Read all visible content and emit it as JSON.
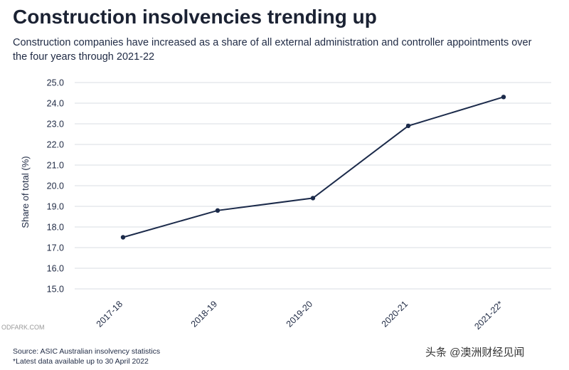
{
  "header": {
    "title": "Construction insolvencies trending up",
    "subtitle": "Construction companies have increased as a share of all external administration and controller appointments over the four years through 2021-22"
  },
  "chart_data": {
    "type": "line",
    "title": "Construction insolvencies trending up",
    "subtitle": "Construction companies have increased as a share of all external administration and controller appointments over the four years through 2021-22",
    "categories": [
      "2017-18",
      "2018-19",
      "2019-20",
      "2020-21",
      "2021-22*"
    ],
    "series": [
      {
        "values": [
          17.5,
          18.8,
          19.4,
          22.9,
          24.3
        ]
      }
    ],
    "xlabel": "",
    "ylabel": "Share of total (%)",
    "ylim": [
      15.0,
      25.0
    ],
    "yticks": [
      "15.0",
      "16.0",
      "17.0",
      "18.0",
      "19.0",
      "20.0",
      "21.0",
      "22.0",
      "23.0",
      "24.0",
      "25.0"
    ],
    "grid": true,
    "line_color": "#1b2a4a",
    "grid_color": "#d9dde3"
  },
  "footer": {
    "source": "Source: ASIC Australian insolvency statistics",
    "note": "*Latest data available up to 30 April 2022"
  },
  "watermark": {
    "text": "头条 @澳洲财经见闻",
    "left_mark": "ODFARK.COM"
  }
}
